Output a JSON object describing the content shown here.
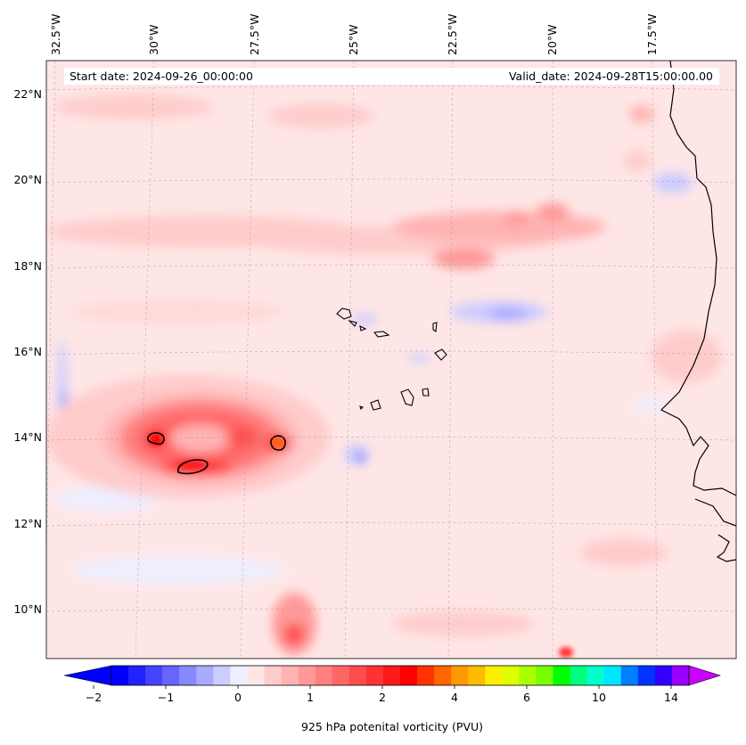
{
  "header": {
    "start_date": "Start date: 2024-09-26_00:00:00",
    "valid_date": "Valid_date: 2024-09-28T15:00:00.00"
  },
  "axes": {
    "lon_ticks": [
      "32.5°W",
      "30°W",
      "27.5°W",
      "25°W",
      "22.5°W",
      "20°W",
      "17.5°W"
    ],
    "lat_ticks": [
      "22°N",
      "20°N",
      "18°N",
      "16°N",
      "14°N",
      "12°N",
      "10°N"
    ]
  },
  "colorbar": {
    "label": "925 hPa potenital vorticity (PVU)",
    "tick_labels": [
      "−2",
      "−1",
      "0",
      "1",
      "2",
      "4",
      "6",
      "10",
      "14"
    ],
    "colors": [
      "#0000ff",
      "#2222ff",
      "#4444ff",
      "#6666ff",
      "#8888ff",
      "#aaaaff",
      "#ccccff",
      "#eeeeff",
      "#ffe6e6",
      "#ffcccc",
      "#ffb3b3",
      "#ff9999",
      "#ff8080",
      "#ff6666",
      "#ff4c4c",
      "#ff3333",
      "#ff1a1a",
      "#ff0000",
      "#ff3300",
      "#ff6600",
      "#ff9900",
      "#ffbb00",
      "#ffee00",
      "#ddff00",
      "#aaff00",
      "#77ff00",
      "#00ff00",
      "#00ff80",
      "#00ffcc",
      "#00e6ff",
      "#0080ff",
      "#0033ff",
      "#3300ff",
      "#9900ff"
    ],
    "under_color": "#0000ff",
    "over_color": "#cc00ff"
  }
}
